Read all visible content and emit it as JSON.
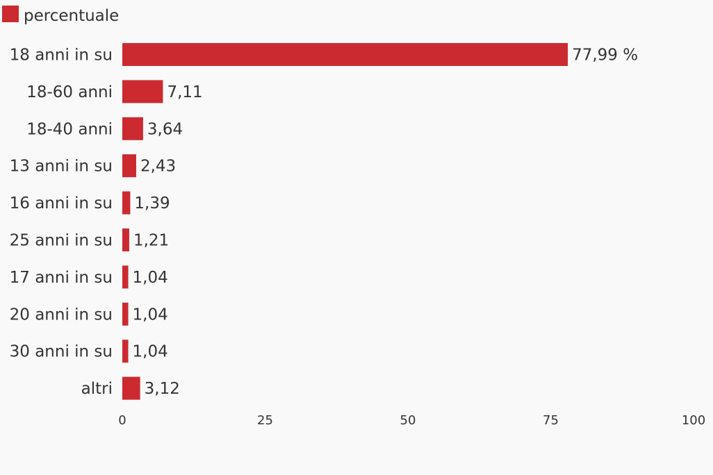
{
  "chart_data": {
    "type": "bar",
    "orientation": "horizontal",
    "legend": {
      "position": "top-left"
    },
    "series": [
      {
        "name": "percentuale",
        "color": "#cc2a31",
        "values": [
          77.99,
          7.11,
          3.64,
          2.43,
          1.39,
          1.21,
          1.04,
          1.04,
          1.04,
          3.12
        ],
        "value_labels": [
          "77,99 %",
          "7,11",
          "3,64",
          "2,43",
          "1,39",
          "1,21",
          "1,04",
          "1,04",
          "1,04",
          "3,12"
        ]
      }
    ],
    "categories": [
      "18 anni in su",
      "18-60 anni",
      "18-40 anni",
      "13 anni in su",
      "16 anni in su",
      "25 anni in su",
      "17 anni in su",
      "20 anni in su",
      "30 anni in su",
      "altri"
    ],
    "xlim": [
      0,
      100
    ],
    "x_ticks": [
      0,
      25,
      50,
      75,
      100
    ],
    "x_tick_labels": [
      "0",
      "25",
      "50",
      "75",
      "100"
    ],
    "grid": false,
    "title": "",
    "xlabel": "",
    "ylabel": ""
  }
}
